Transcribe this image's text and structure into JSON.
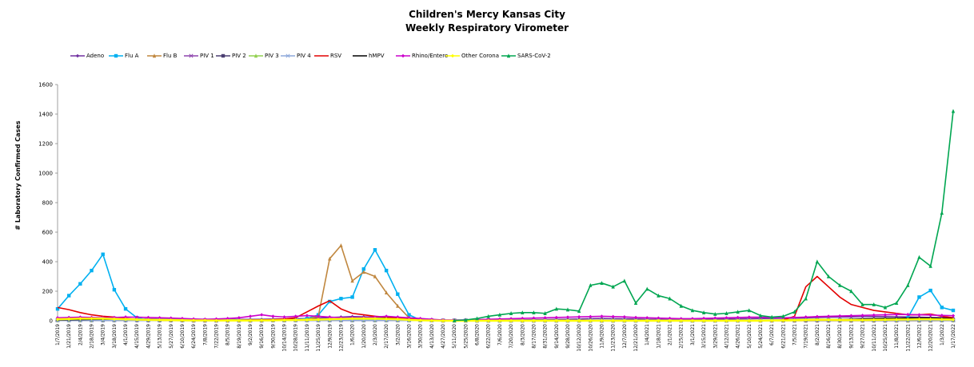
{
  "chart_data": {
    "type": "line",
    "title": "Children's Mercy Kansas City",
    "subtitle": "Weekly Respiratory Virometer",
    "xlabel": "",
    "ylabel": "# Laboratory Confirmed Cases",
    "ylim": [
      0,
      1600
    ],
    "yticks": [
      0,
      200,
      400,
      600,
      800,
      1000,
      1200,
      1400,
      1600
    ],
    "grid": false,
    "legend_position": "top",
    "x_labels": [
      "1/7/2019",
      "1/21/2019",
      "2/4/2019",
      "2/18/2019",
      "3/4/2019",
      "3/18/2019",
      "4/1/2019",
      "4/15/2019",
      "4/29/2019",
      "5/13/2019",
      "5/27/2019",
      "6/10/2019",
      "6/24/2019",
      "7/8/2019",
      "7/22/2019",
      "8/5/2019",
      "8/19/2019",
      "9/2/2019",
      "9/16/2019",
      "9/30/2019",
      "10/14/2019",
      "10/28/2019",
      "11/11/2019",
      "11/25/2019",
      "12/9/2019",
      "12/23/2019",
      "1/6/2020",
      "1/20/2020",
      "2/3/2020",
      "2/17/2020",
      "3/2/2020",
      "3/16/2020",
      "3/30/2020",
      "4/13/2020",
      "4/27/2020",
      "5/11/2020",
      "5/25/2020",
      "6/8/2020",
      "6/22/2020",
      "7/6/2020",
      "7/20/2020",
      "8/3/2020",
      "8/17/2020",
      "8/31/2020",
      "9/14/2020",
      "9/28/2020",
      "10/12/2020",
      "10/26/2020",
      "11/9/2020",
      "11/23/2020",
      "12/7/2020",
      "12/21/2020",
      "1/4/2021",
      "1/18/2021",
      "2/1/2021",
      "2/15/2021",
      "3/1/2021",
      "3/15/2021",
      "3/29/2021",
      "4/12/2021",
      "4/26/2021",
      "5/10/2021",
      "5/24/2021",
      "6/7/2021",
      "6/21/2021",
      "7/5/2021",
      "7/19/2021",
      "8/2/2021",
      "8/16/2021",
      "8/30/2021",
      "9/13/2021",
      "9/27/2021",
      "10/11/2021",
      "10/25/2021",
      "11/8/2021",
      "11/22/2021",
      "12/6/2021",
      "12/20/2021",
      "1/3/2022",
      "1/17/2022"
    ],
    "series": [
      {
        "name": "Adeno",
        "color": "#7030a0",
        "marker": "diamond",
        "values": [
          15,
          14,
          16,
          15,
          14,
          13,
          12,
          12,
          12,
          11,
          11,
          10,
          9,
          9,
          8,
          8,
          9,
          9,
          10,
          11,
          12,
          13,
          15,
          18,
          22,
          25,
          28,
          26,
          24,
          22,
          20,
          15,
          8,
          5,
          4,
          3,
          3,
          3,
          4,
          5,
          6,
          6,
          7,
          8,
          9,
          10,
          12,
          14,
          15,
          14,
          13,
          12,
          10,
          9,
          8,
          8,
          9,
          10,
          11,
          12,
          13,
          14,
          15,
          16,
          17,
          18,
          20,
          22,
          24,
          25,
          26,
          27,
          28,
          28,
          27,
          26,
          24,
          22,
          20,
          18
        ]
      },
      {
        "name": "Flu A",
        "color": "#00b0f0",
        "marker": "square",
        "values": [
          80,
          170,
          250,
          340,
          450,
          210,
          80,
          20,
          5,
          3,
          2,
          1,
          1,
          1,
          1,
          1,
          1,
          1,
          1,
          2,
          3,
          5,
          15,
          40,
          130,
          150,
          160,
          350,
          480,
          340,
          180,
          40,
          5,
          2,
          1,
          0,
          0,
          0,
          0,
          0,
          0,
          0,
          0,
          0,
          0,
          0,
          0,
          0,
          0,
          0,
          0,
          0,
          0,
          0,
          0,
          0,
          0,
          0,
          0,
          0,
          0,
          0,
          1,
          2,
          3,
          5,
          5,
          5,
          5,
          5,
          5,
          5,
          6,
          8,
          10,
          20,
          160,
          205,
          90,
          70
        ]
      },
      {
        "name": "Flu B",
        "color": "#c0873f",
        "marker": "triangle",
        "values": [
          5,
          5,
          5,
          5,
          5,
          5,
          4,
          3,
          2,
          1,
          1,
          1,
          0,
          0,
          0,
          0,
          0,
          0,
          0,
          1,
          2,
          3,
          10,
          30,
          420,
          510,
          270,
          330,
          300,
          190,
          100,
          20,
          3,
          1,
          0,
          0,
          0,
          0,
          0,
          0,
          0,
          0,
          0,
          0,
          0,
          0,
          0,
          0,
          0,
          0,
          0,
          0,
          0,
          0,
          0,
          0,
          0,
          0,
          0,
          0,
          0,
          0,
          0,
          0,
          0,
          0,
          0,
          0,
          0,
          0,
          0,
          0,
          0,
          0,
          0,
          0,
          0,
          0,
          1,
          1
        ]
      },
      {
        "name": "PIV 1",
        "color": "#8e44ad",
        "marker": "x",
        "values": [
          3,
          3,
          3,
          3,
          3,
          3,
          3,
          3,
          3,
          3,
          3,
          3,
          3,
          3,
          3,
          3,
          3,
          3,
          3,
          3,
          3,
          3,
          3,
          3,
          3,
          3,
          3,
          3,
          3,
          3,
          3,
          3,
          3,
          3,
          3,
          3,
          3,
          3,
          3,
          3,
          3,
          3,
          3,
          3,
          3,
          3,
          3,
          3,
          3,
          3,
          3,
          3,
          3,
          3,
          3,
          3,
          3,
          3,
          3,
          3,
          3,
          3,
          3,
          3,
          3,
          3,
          3,
          3,
          3,
          3,
          3,
          3,
          3,
          3,
          3,
          3,
          3,
          3,
          3,
          3
        ]
      },
      {
        "name": "PIV 2",
        "color": "#4b3f72",
        "marker": "square",
        "values": [
          2,
          2,
          2,
          2,
          2,
          2,
          2,
          2,
          2,
          2,
          2,
          2,
          2,
          2,
          2,
          2,
          2,
          2,
          2,
          2,
          2,
          2,
          2,
          2,
          2,
          2,
          2,
          2,
          2,
          2,
          2,
          2,
          2,
          2,
          2,
          2,
          2,
          2,
          2,
          2,
          2,
          2,
          2,
          2,
          2,
          2,
          2,
          2,
          2,
          2,
          2,
          2,
          2,
          2,
          2,
          2,
          2,
          2,
          2,
          2,
          2,
          2,
          2,
          2,
          2,
          2,
          2,
          2,
          2,
          2,
          2,
          2,
          2,
          2,
          2,
          2,
          2,
          2,
          2,
          2
        ]
      },
      {
        "name": "PIV 3",
        "color": "#92d050",
        "marker": "triangle",
        "values": [
          4,
          4,
          4,
          4,
          5,
          5,
          6,
          7,
          8,
          9,
          10,
          10,
          10,
          9,
          8,
          7,
          6,
          5,
          5,
          4,
          4,
          4,
          4,
          4,
          4,
          4,
          4,
          4,
          4,
          4,
          4,
          3,
          3,
          3,
          3,
          3,
          3,
          3,
          3,
          3,
          3,
          3,
          3,
          3,
          3,
          3,
          3,
          3,
          3,
          3,
          3,
          3,
          3,
          3,
          3,
          3,
          3,
          3,
          3,
          3,
          3,
          3,
          4,
          5,
          6,
          8,
          10,
          10,
          9,
          8,
          6,
          5,
          5,
          4,
          4,
          4,
          4,
          4,
          4,
          4
        ]
      },
      {
        "name": "PIV 4",
        "color": "#8ea9db",
        "marker": "x",
        "values": [
          2,
          2,
          2,
          2,
          2,
          2,
          2,
          2,
          2,
          2,
          2,
          2,
          2,
          2,
          2,
          2,
          2,
          2,
          2,
          2,
          2,
          2,
          2,
          2,
          2,
          2,
          2,
          2,
          2,
          2,
          2,
          2,
          2,
          2,
          2,
          2,
          2,
          2,
          2,
          2,
          2,
          2,
          2,
          2,
          2,
          2,
          2,
          2,
          2,
          2,
          2,
          2,
          2,
          2,
          2,
          2,
          2,
          2,
          2,
          2,
          2,
          2,
          2,
          2,
          2,
          2,
          2,
          2,
          2,
          2,
          2,
          2,
          2,
          2,
          2,
          2,
          2,
          2,
          2,
          2
        ]
      },
      {
        "name": "RSV",
        "color": "#e30000",
        "marker": "none",
        "values": [
          90,
          75,
          55,
          40,
          30,
          25,
          15,
          10,
          8,
          6,
          5,
          4,
          3,
          3,
          3,
          3,
          4,
          5,
          6,
          8,
          12,
          20,
          60,
          100,
          135,
          80,
          50,
          40,
          30,
          25,
          20,
          12,
          5,
          2,
          1,
          0,
          0,
          0,
          0,
          0,
          0,
          0,
          0,
          0,
          0,
          0,
          0,
          0,
          0,
          0,
          0,
          0,
          0,
          0,
          0,
          0,
          0,
          0,
          0,
          0,
          0,
          0,
          1,
          2,
          5,
          30,
          230,
          300,
          230,
          160,
          110,
          90,
          70,
          60,
          50,
          40,
          40,
          45,
          30,
          20
        ]
      },
      {
        "name": "hMPV",
        "color": "#000000",
        "marker": "none",
        "values": [
          6,
          7,
          8,
          9,
          10,
          10,
          9,
          8,
          6,
          5,
          4,
          3,
          2,
          2,
          1,
          1,
          1,
          1,
          2,
          2,
          3,
          4,
          6,
          8,
          10,
          12,
          14,
          16,
          18,
          16,
          12,
          6,
          2,
          1,
          0,
          0,
          0,
          0,
          0,
          0,
          0,
          0,
          0,
          0,
          0,
          0,
          0,
          0,
          0,
          0,
          0,
          0,
          0,
          0,
          0,
          0,
          0,
          0,
          0,
          0,
          0,
          0,
          0,
          0,
          1,
          2,
          3,
          4,
          6,
          8,
          10,
          12,
          14,
          15,
          16,
          17,
          18,
          18,
          16,
          14
        ]
      },
      {
        "name": "Rhino/Entero",
        "color": "#cc00cc",
        "marker": "diamond",
        "values": [
          20,
          22,
          24,
          22,
          20,
          22,
          25,
          24,
          22,
          20,
          18,
          15,
          12,
          10,
          12,
          15,
          20,
          30,
          40,
          30,
          25,
          30,
          35,
          30,
          25,
          20,
          20,
          20,
          25,
          30,
          25,
          20,
          15,
          10,
          5,
          5,
          5,
          8,
          10,
          12,
          14,
          16,
          18,
          20,
          22,
          24,
          26,
          28,
          30,
          28,
          26,
          22,
          20,
          18,
          16,
          14,
          14,
          16,
          18,
          20,
          22,
          24,
          24,
          22,
          20,
          22,
          25,
          28,
          30,
          32,
          34,
          36,
          38,
          40,
          42,
          42,
          40,
          38,
          36,
          34
        ]
      },
      {
        "name": "Other Corona",
        "color": "#ffff00",
        "marker": "diamond",
        "values": [
          10,
          12,
          14,
          15,
          14,
          12,
          10,
          8,
          6,
          5,
          4,
          3,
          2,
          2,
          1,
          1,
          1,
          1,
          2,
          3,
          4,
          5,
          6,
          8,
          10,
          12,
          14,
          15,
          14,
          12,
          10,
          6,
          3,
          1,
          0,
          0,
          0,
          0,
          0,
          0,
          0,
          0,
          0,
          0,
          0,
          0,
          0,
          0,
          0,
          0,
          0,
          0,
          0,
          0,
          0,
          0,
          0,
          0,
          0,
          0,
          0,
          0,
          0,
          1,
          2,
          3,
          5,
          6,
          6,
          5,
          5,
          5,
          6,
          7,
          8,
          9,
          10,
          10,
          9,
          8
        ]
      },
      {
        "name": "SARS-CoV-2",
        "color": "#00a651",
        "marker": "triangle",
        "values": [
          null,
          null,
          null,
          null,
          null,
          null,
          null,
          null,
          null,
          null,
          null,
          null,
          null,
          null,
          null,
          null,
          null,
          null,
          null,
          null,
          null,
          null,
          null,
          null,
          null,
          null,
          null,
          null,
          null,
          null,
          null,
          null,
          null,
          null,
          null,
          2,
          5,
          15,
          30,
          40,
          50,
          55,
          55,
          50,
          80,
          75,
          65,
          240,
          255,
          230,
          270,
          120,
          215,
          170,
          150,
          100,
          70,
          55,
          45,
          50,
          60,
          70,
          35,
          25,
          30,
          60,
          150,
          400,
          300,
          240,
          200,
          110,
          110,
          90,
          120,
          240,
          430,
          370,
          730,
          1420
        ]
      }
    ]
  }
}
